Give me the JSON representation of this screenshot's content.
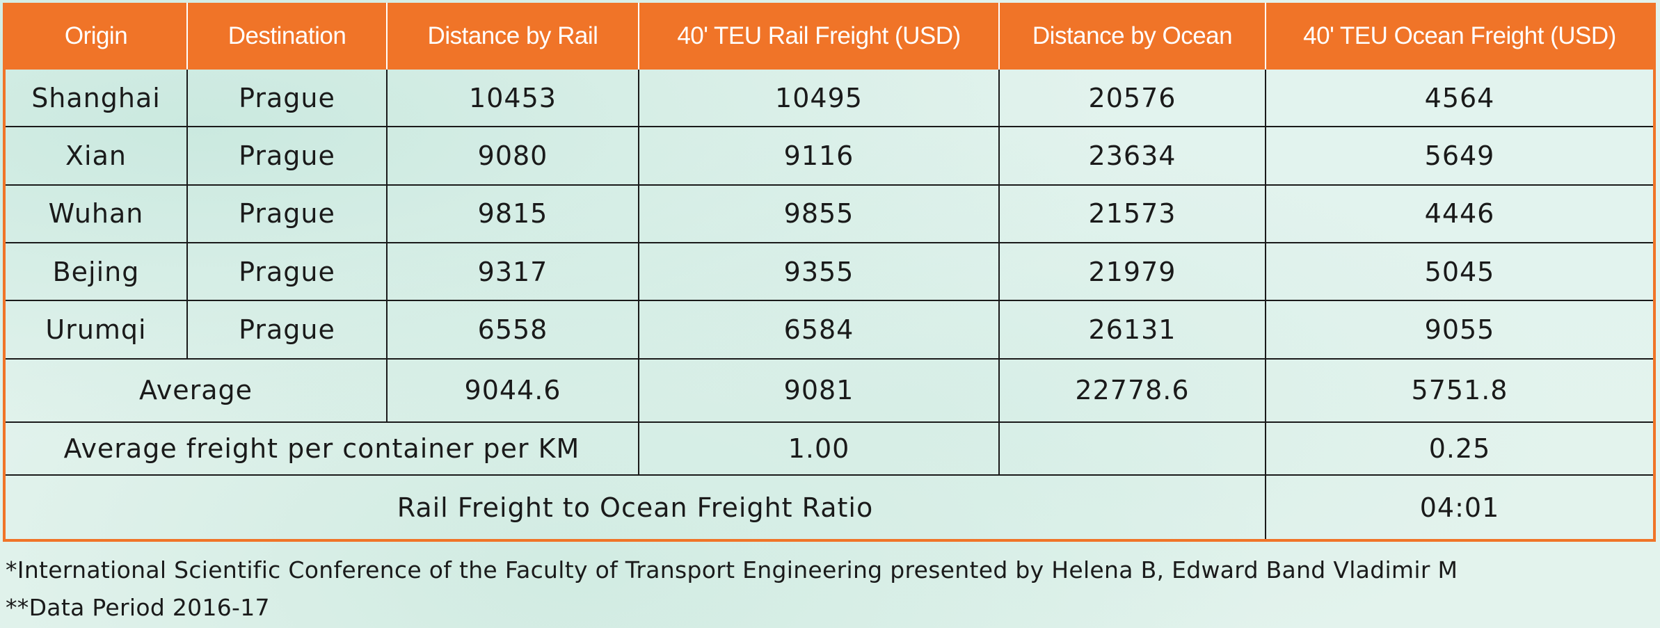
{
  "table": {
    "headers": [
      "Origin",
      "Destination",
      "Distance by Rail",
      "40' TEU Rail Freight (USD)",
      "Distance by Ocean",
      "40' TEU Ocean Freight (USD)"
    ],
    "rows": [
      [
        "Shanghai",
        "Prague",
        "10453",
        "10495",
        "20576",
        "4564"
      ],
      [
        "Xian",
        "Prague",
        "9080",
        "9116",
        "23634",
        "5649"
      ],
      [
        "Wuhan",
        "Prague",
        "9815",
        "9855",
        "21573",
        "4446"
      ],
      [
        "Bejing",
        "Prague",
        "9317",
        "9355",
        "21979",
        "5045"
      ],
      [
        "Urumqi",
        "Prague",
        "6558",
        "6584",
        "26131",
        "9055"
      ]
    ],
    "average": {
      "label": "Average",
      "distance_rail": "9044.6",
      "rail_freight": "9081",
      "distance_ocean": "22778.6",
      "ocean_freight": "5751.8"
    },
    "per_km": {
      "label": "Average freight per container per KM",
      "rail": "1.00",
      "distance_ocean": "",
      "ocean": "0.25"
    },
    "ratio": {
      "label": "Rail Freight to Ocean Freight Ratio",
      "value": "04:01"
    }
  },
  "footnotes": [
    "*International Scientific Conference of the Faculty of Transport Engineering presented by Helena B, Edward Band Vladimir M",
    "**Data Period 2016-17"
  ],
  "colors": {
    "header_bg": "#f07428",
    "header_text": "#ffffff",
    "background": "#e3f3ed",
    "grid": "#1a1a1a"
  }
}
